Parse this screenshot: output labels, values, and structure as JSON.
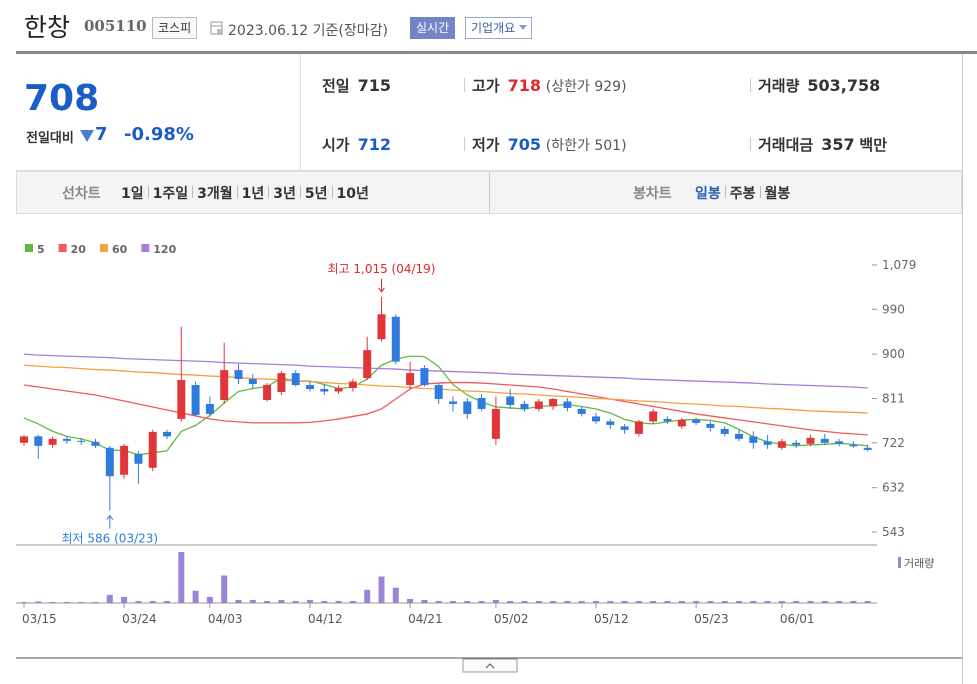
{
  "header": {
    "title": "한창",
    "code": "005110",
    "market": "코스피",
    "date": "2023.06.12 기준(장마감)",
    "realtime": "실시간",
    "company": "기업개요"
  },
  "quote": {
    "price": 708,
    "change_label": "전일대비",
    "change": 7,
    "change_pct": "-0.98%",
    "items": [
      {
        "label": "전일",
        "value": "715"
      },
      {
        "label": "고가",
        "value": "718",
        "note": "(상한가 929)"
      },
      {
        "label": "거래량",
        "value": "503,758"
      },
      {
        "label": "시가",
        "value": "712"
      },
      {
        "label": "저가",
        "value": "705",
        "note": "(하한가 501)"
      },
      {
        "label": "거래대금",
        "value": "357",
        "note": "백만"
      }
    ]
  },
  "tabs": {
    "line_label": "선차트",
    "line_periods": [
      "1일",
      "1주일",
      "3개월",
      "1년",
      "3년",
      "5년",
      "10년"
    ],
    "candle_label": "봉차트",
    "candle_periods": [
      "일봉",
      "주봉",
      "월봉"
    ]
  },
  "chart_data": {
    "type": "candlestick",
    "categories": [
      "03/15",
      null,
      null,
      null,
      null,
      null,
      null,
      "03/24",
      null,
      null,
      null,
      null,
      null,
      "04/03",
      null,
      null,
      null,
      null,
      null,
      null,
      "04/12",
      null,
      null,
      null,
      null,
      null,
      null,
      "04/21",
      null,
      null,
      null,
      null,
      null,
      "05/02",
      null,
      null,
      null,
      null,
      null,
      null,
      "05/12",
      null,
      null,
      null,
      null,
      null,
      null,
      "05/23",
      null,
      null,
      null,
      null,
      null,
      "06/01",
      null,
      null,
      null,
      null,
      null,
      null
    ],
    "open": [
      722,
      735,
      718,
      730,
      726,
      724,
      712,
      658,
      700,
      672,
      744,
      770,
      838,
      800,
      808,
      868,
      850,
      808,
      824,
      862,
      838,
      830,
      825,
      832,
      852,
      930,
      975,
      838,
      872,
      838,
      805,
      805,
      812,
      730,
      815,
      800,
      790,
      795,
      805,
      790,
      775,
      765,
      755,
      740,
      765,
      770,
      755,
      768,
      760,
      750,
      740,
      735,
      725,
      712,
      722,
      720,
      730,
      725,
      718,
      712
    ],
    "high": [
      738,
      738,
      735,
      735,
      732,
      730,
      716,
      720,
      705,
      748,
      748,
      955,
      845,
      815,
      923,
      880,
      860,
      842,
      866,
      868,
      845,
      840,
      838,
      850,
      935,
      1015,
      980,
      885,
      878,
      842,
      815,
      812,
      820,
      815,
      830,
      806,
      810,
      812,
      812,
      795,
      782,
      770,
      760,
      768,
      790,
      775,
      772,
      772,
      765,
      755,
      748,
      745,
      738,
      730,
      728,
      738,
      740,
      730,
      725,
      718
    ],
    "low": [
      716,
      690,
      712,
      720,
      718,
      712,
      586,
      650,
      640,
      665,
      730,
      765,
      775,
      775,
      800,
      840,
      830,
      805,
      818,
      835,
      825,
      818,
      820,
      825,
      848,
      925,
      880,
      830,
      835,
      800,
      785,
      770,
      785,
      718,
      790,
      785,
      785,
      788,
      785,
      775,
      760,
      750,
      740,
      735,
      760,
      760,
      750,
      758,
      745,
      735,
      725,
      710,
      710,
      708,
      712,
      715,
      718,
      715,
      712,
      705
    ],
    "close": [
      735,
      716,
      730,
      726,
      724,
      716,
      655,
      716,
      680,
      744,
      735,
      848,
      778,
      780,
      868,
      850,
      840,
      838,
      862,
      838,
      830,
      825,
      832,
      845,
      908,
      980,
      885,
      862,
      838,
      810,
      800,
      780,
      790,
      790,
      798,
      790,
      805,
      810,
      792,
      780,
      765,
      758,
      748,
      765,
      785,
      765,
      768,
      762,
      752,
      740,
      730,
      722,
      718,
      725,
      718,
      732,
      722,
      720,
      715,
      708
    ],
    "up_color": "#e0363a",
    "down_color": "#2f7bde",
    "series": [
      {
        "name": "5",
        "color": "#63b947",
        "values": [
          772,
          760,
          745,
          735,
          730,
          722,
          707,
          707,
          698,
          702,
          706,
          745,
          757,
          777,
          802,
          825,
          831,
          835,
          852,
          846,
          846,
          839,
          831,
          834,
          850,
          878,
          890,
          896,
          895,
          875,
          839,
          818,
          804,
          794,
          792,
          790,
          795,
          797,
          799,
          795,
          790,
          782,
          769,
          762,
          760,
          764,
          768,
          769,
          767,
          762,
          749,
          734,
          724,
          719,
          716,
          718,
          719,
          721,
          719,
          716
        ]
      },
      {
        "name": "20",
        "color": "#ef5a5a",
        "values": [
          838,
          834,
          830,
          826,
          822,
          818,
          812,
          806,
          800,
          794,
          788,
          782,
          776,
          770,
          766,
          764,
          762,
          762,
          762,
          762,
          763,
          766,
          770,
          775,
          780,
          790,
          810,
          830,
          840,
          842,
          843,
          843,
          842,
          840,
          838,
          836,
          834,
          830,
          825,
          820,
          815,
          810,
          805,
          800,
          795,
          790,
          785,
          780,
          776,
          772,
          768,
          764,
          760,
          756,
          752,
          748,
          745,
          742,
          740,
          738
        ]
      },
      {
        "name": "60",
        "color": "#f5a040",
        "values": [
          878,
          876,
          874,
          873,
          871,
          869,
          868,
          866,
          864,
          863,
          861,
          859,
          858,
          856,
          855,
          853,
          851,
          850,
          848,
          846,
          845,
          843,
          841,
          840,
          838,
          836,
          835,
          833,
          831,
          830,
          828,
          826,
          825,
          823,
          821,
          820,
          818,
          816,
          815,
          813,
          811,
          810,
          808,
          806,
          805,
          803,
          801,
          800,
          798,
          796,
          795,
          793,
          791,
          790,
          788,
          786,
          785,
          784,
          783,
          782
        ]
      },
      {
        "name": "120",
        "color": "#a97ddb",
        "values": [
          900,
          898,
          897,
          896,
          895,
          894,
          893,
          891,
          890,
          889,
          888,
          887,
          886,
          885,
          883,
          882,
          881,
          880,
          879,
          878,
          876,
          875,
          874,
          873,
          872,
          871,
          870,
          868,
          867,
          866,
          865,
          864,
          863,
          862,
          860,
          859,
          858,
          857,
          856,
          855,
          854,
          853,
          852,
          850,
          849,
          848,
          847,
          846,
          845,
          844,
          843,
          842,
          840,
          839,
          838,
          837,
          836,
          835,
          834,
          832
        ]
      }
    ],
    "ylim": [
      517,
      1119
    ],
    "yticks": [
      {
        "value": 1079,
        "label": "1,079"
      },
      990,
      900,
      811,
      722,
      632,
      543
    ],
    "annotations": {
      "high": "최고 1,015 (04/19)",
      "low": "최저 586 (03/23)"
    },
    "volume": {
      "name": "거래량",
      "color": "#9b84d6",
      "ylim": [
        0,
        13000000
      ],
      "values": [
        250000,
        380000,
        250000,
        250000,
        250000,
        250000,
        2000000,
        1500000,
        500000,
        500000,
        500000,
        12500000,
        3000000,
        1500000,
        6750000,
        750000,
        750000,
        500000,
        750000,
        500000,
        750000,
        500000,
        500000,
        500000,
        3250000,
        6500000,
        3750000,
        1000000,
        750000,
        500000,
        500000,
        500000,
        500000,
        750000,
        500000,
        500000,
        500000,
        500000,
        500000,
        500000,
        500000,
        500000,
        500000,
        500000,
        500000,
        500000,
        500000,
        500000,
        500000,
        500000,
        500000,
        500000,
        500000,
        500000,
        500000,
        500000,
        500000,
        500000,
        500000,
        503758
      ]
    }
  }
}
